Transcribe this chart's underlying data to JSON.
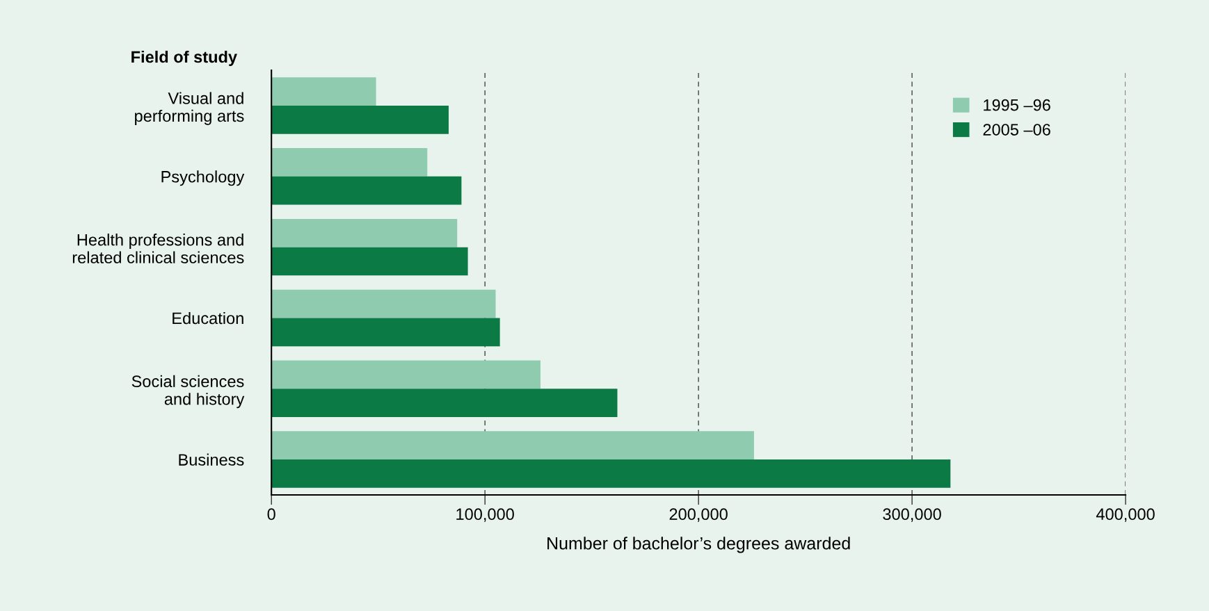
{
  "chart_data": {
    "type": "bar",
    "orientation": "horizontal",
    "xlabel": "Number of bachelor’s degrees awarded",
    "ylabel": "Field of study",
    "categories": [
      "Visual and\nperforming arts",
      "Psychology",
      "Health professions and\nrelated clinical sciences",
      "Education",
      "Social sciences\nand history",
      "Business"
    ],
    "series": [
      {
        "name": "1995 –96",
        "color": "#8ecbaf",
        "values": [
          49000,
          73000,
          87000,
          105000,
          126000,
          226000
        ]
      },
      {
        "name": "2005 –06",
        "color": "#0b7a45",
        "values": [
          83000,
          89000,
          92000,
          107000,
          162000,
          318000
        ]
      }
    ],
    "xlim": [
      0,
      400000
    ],
    "xticks": [
      0,
      {
        "value": 100000,
        "label": "100,000"
      },
      {
        "value": 200000,
        "label": "200,000"
      },
      {
        "value": 300000,
        "label": "300,000"
      },
      {
        "value": 400000,
        "label": "400,000"
      }
    ],
    "grid": "x",
    "legend": "top right"
  }
}
